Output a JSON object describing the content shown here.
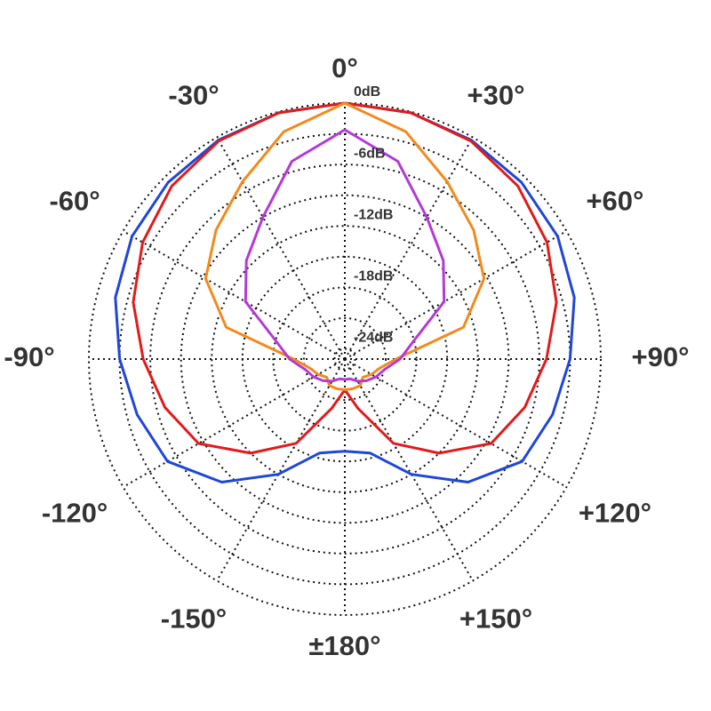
{
  "chart_data": {
    "type": "polar",
    "theta": [
      -180,
      -165,
      -150,
      -135,
      -120,
      -105,
      -90,
      -75,
      -60,
      -45,
      -30,
      -15,
      0,
      15,
      30,
      45,
      60,
      75,
      90,
      105,
      120,
      135,
      150,
      165,
      180
    ],
    "rlim": [
      -25,
      0
    ],
    "rgrid": [
      0,
      -3,
      -6,
      -9,
      -12,
      -15,
      -18,
      -21,
      -24
    ],
    "rticks": [
      {
        "value": 0,
        "label": "0dB"
      },
      {
        "value": -6,
        "label": "-6dB"
      },
      {
        "value": -12,
        "label": "-12dB"
      },
      {
        "value": -18,
        "label": "-18dB"
      },
      {
        "value": -24,
        "label": "-24dB"
      }
    ],
    "thetaticks": [
      {
        "value": 0,
        "label": "0°"
      },
      {
        "value": 30,
        "label": "+30°"
      },
      {
        "value": 60,
        "label": "+60°"
      },
      {
        "value": 90,
        "label": "+90°"
      },
      {
        "value": 120,
        "label": "+120°"
      },
      {
        "value": 150,
        "label": "+150°"
      },
      {
        "value": 180,
        "label": "±180°"
      },
      {
        "value": -150,
        "label": "-150°"
      },
      {
        "value": -120,
        "label": "-120°"
      },
      {
        "value": -90,
        "label": "-90°"
      },
      {
        "value": -60,
        "label": "-60°"
      },
      {
        "value": -30,
        "label": "-30°"
      }
    ],
    "series": [
      {
        "color": "#1f47d6",
        "values": [
          -16,
          -15.5,
          -12,
          -8,
          -5,
          -4,
          -3,
          -1.8,
          -1,
          -0.6,
          -0.3,
          -0.1,
          0,
          -0.1,
          -0.3,
          -0.6,
          -1,
          -1.8,
          -3,
          -4,
          -5,
          -8,
          -12,
          -15.5,
          -16
        ]
      },
      {
        "color": "#e01b1b",
        "values": [
          -22,
          -20,
          -15.5,
          -12,
          -8.5,
          -6.8,
          -5.3,
          -3.6,
          -2.2,
          -1.1,
          -0.4,
          -0.1,
          0,
          -0.1,
          -0.4,
          -1.1,
          -2.2,
          -3.6,
          -5.3,
          -6.8,
          -8.5,
          -12,
          -15.5,
          -20,
          -22
        ]
      },
      {
        "color": "#f28a1e",
        "values": [
          -22,
          -22,
          -22,
          -22.5,
          -22,
          -21.5,
          -20,
          -13,
          -9.3,
          -7.2,
          -5,
          -2,
          0,
          -2,
          -5,
          -7.2,
          -9.3,
          -13,
          -20,
          -21.5,
          -22,
          -22.5,
          -22,
          -22,
          -22
        ]
      },
      {
        "color": "#b43ad6",
        "values": [
          -23,
          -23,
          -22.5,
          -22,
          -21.5,
          -21,
          -19.6,
          -18,
          -13.8,
          -11.4,
          -9,
          -5,
          -2.6,
          -5,
          -9,
          -11.4,
          -13.8,
          -18,
          -19.6,
          -21,
          -21.5,
          -22,
          -22.5,
          -23,
          -23
        ]
      }
    ]
  }
}
